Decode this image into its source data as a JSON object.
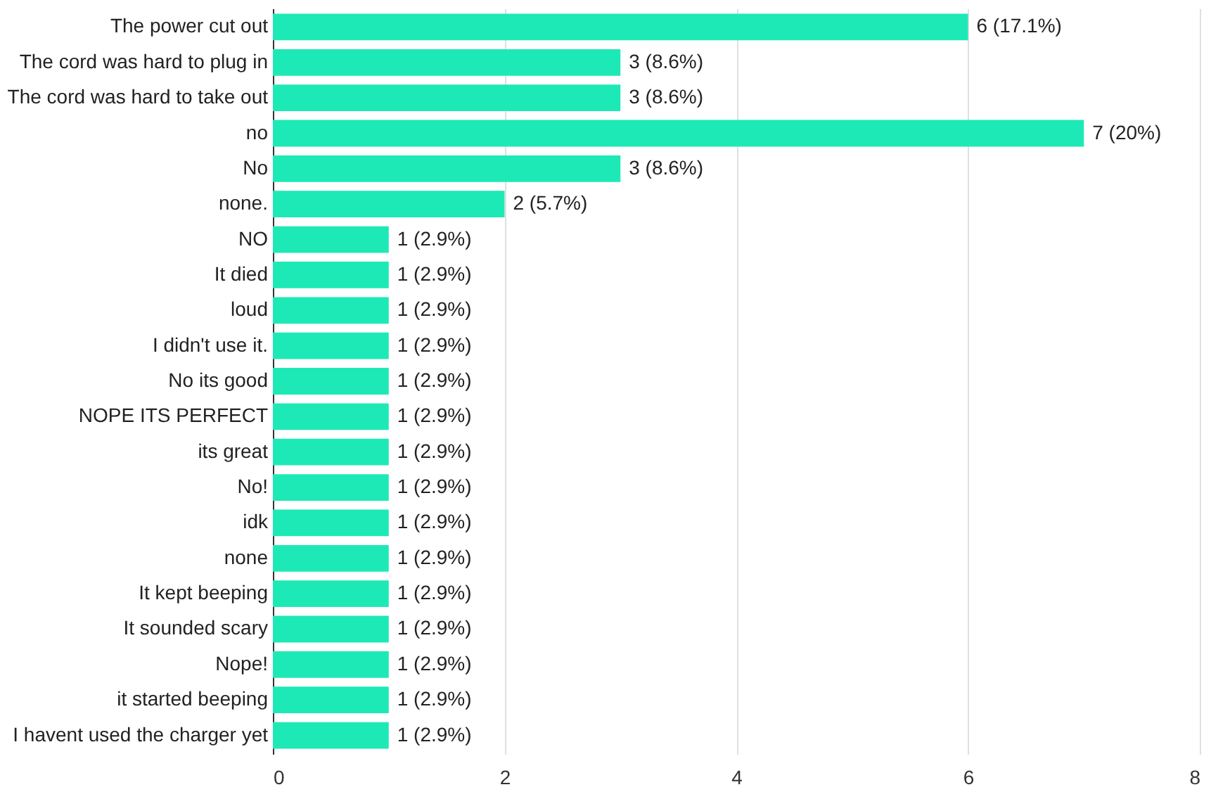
{
  "chart_data": {
    "type": "bar",
    "orientation": "horizontal",
    "categories": [
      "The power cut out",
      "The cord was hard to plug in",
      "The cord was hard to take out",
      "no",
      "No",
      "none.",
      "NO",
      "It died",
      "loud",
      "I didn't use it.",
      "No its good",
      "NOPE ITS PERFECT",
      "its great",
      "No!",
      "idk",
      "none",
      "It kept beeping",
      "It sounded scary",
      "Nope!",
      "it started beeping",
      "I havent used the charger yet"
    ],
    "values": [
      6,
      3,
      3,
      7,
      3,
      2,
      1,
      1,
      1,
      1,
      1,
      1,
      1,
      1,
      1,
      1,
      1,
      1,
      1,
      1,
      1
    ],
    "value_labels": [
      "6 (17.1%)",
      "3 (8.6%)",
      "3 (8.6%)",
      "7 (20%)",
      "3 (8.6%)",
      "2 (5.7%)",
      "1 (2.9%)",
      "1 (2.9%)",
      "1 (2.9%)",
      "1 (2.9%)",
      "1 (2.9%)",
      "1 (2.9%)",
      "1 (2.9%)",
      "1 (2.9%)",
      "1 (2.9%)",
      "1 (2.9%)",
      "1 (2.9%)",
      "1 (2.9%)",
      "1 (2.9%)",
      "1 (2.9%)",
      "1 (2.9%)"
    ],
    "color": "#1de9b6",
    "xlim": [
      0,
      8
    ],
    "xticks": [
      0,
      2,
      4,
      6,
      8
    ],
    "grid": "x"
  }
}
